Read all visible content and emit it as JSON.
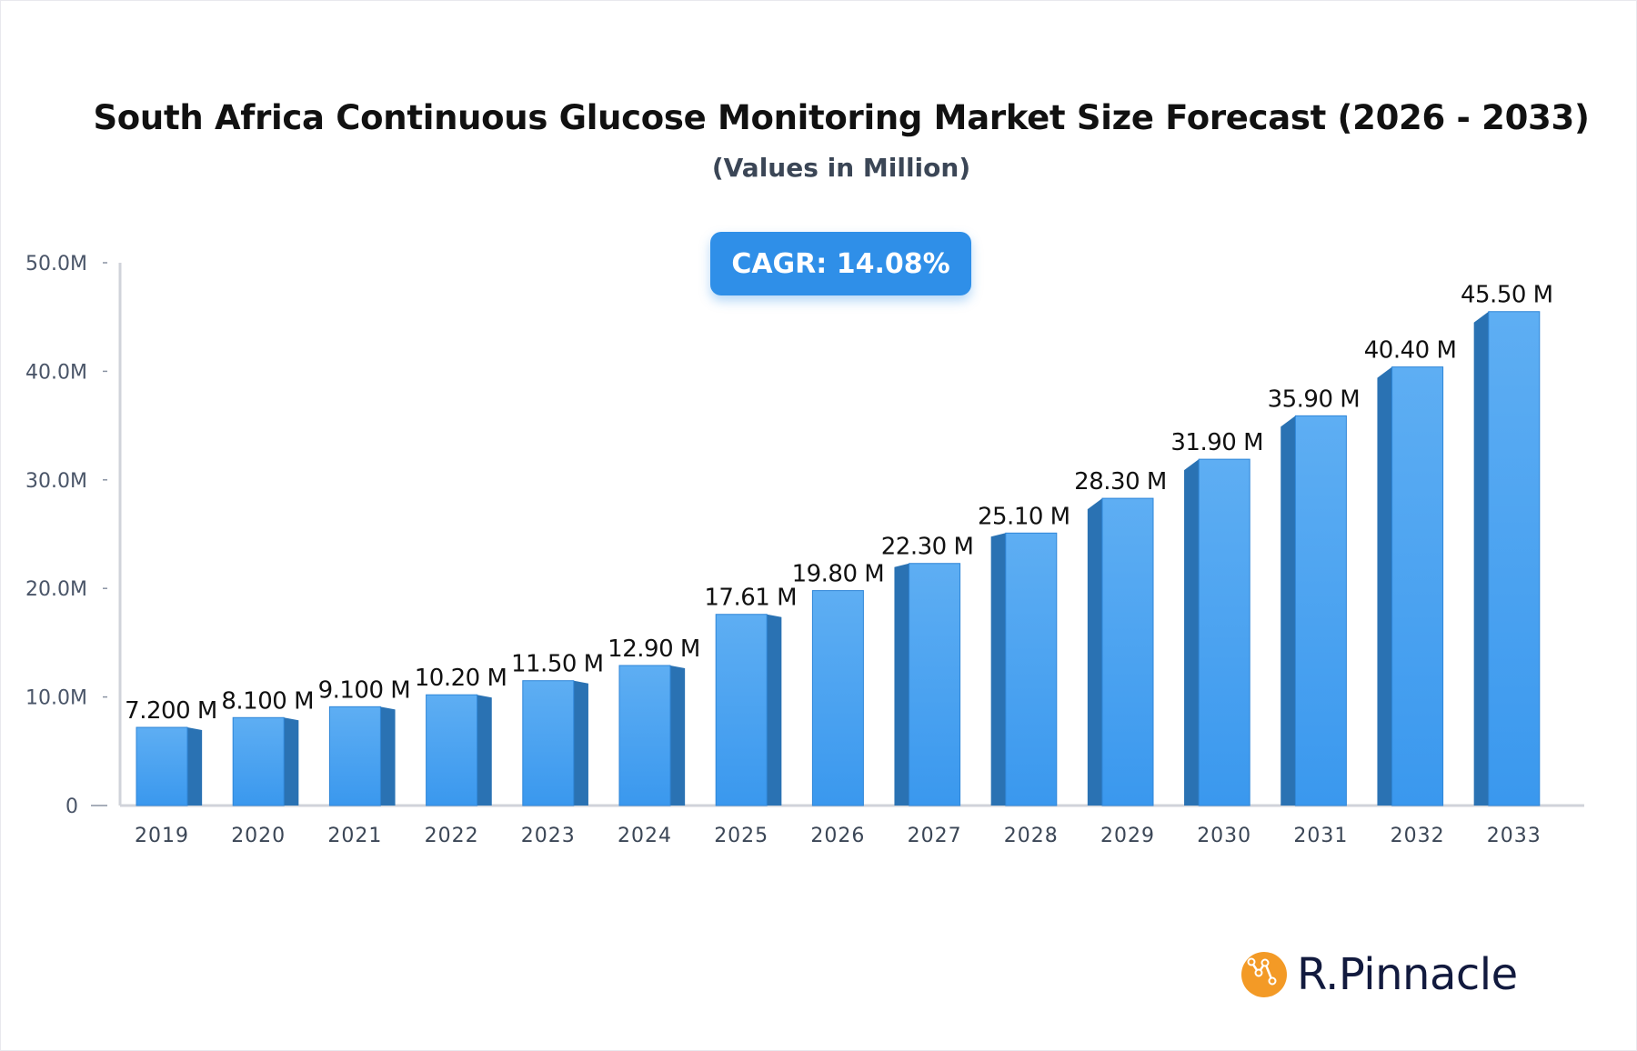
{
  "chart_data": {
    "type": "bar",
    "title": "South Africa Continuous Glucose Monitoring Market Size Forecast (2026 - 2033)",
    "subtitle": "(Values in Million)",
    "categories": [
      "2019",
      "2020",
      "2021",
      "2022",
      "2023",
      "2024",
      "2025",
      "2026",
      "2027",
      "2028",
      "2029",
      "2030",
      "2031",
      "2032",
      "2033"
    ],
    "values": [
      7.2,
      8.1,
      9.1,
      10.2,
      11.5,
      12.9,
      17.61,
      19.8,
      22.3,
      25.1,
      28.3,
      31.9,
      35.9,
      40.4,
      45.5
    ],
    "data_labels": [
      "7.200 M",
      "8.100 M",
      "9.100 M",
      "10.20 M",
      "11.50 M",
      "12.90 M",
      "17.61 M",
      "19.80 M",
      "22.30 M",
      "25.10 M",
      "28.30 M",
      "31.90 M",
      "35.90 M",
      "40.40 M",
      "45.50 M"
    ],
    "ylim": [
      0,
      50
    ],
    "yticks": [
      0,
      10,
      20,
      30,
      40,
      50
    ],
    "ytick_labels": [
      "0",
      "10.0M",
      "20.0M",
      "30.0M",
      "40.0M",
      "50.0M"
    ],
    "xlabel": "",
    "ylabel": "",
    "grid": false,
    "colors": {
      "bar_front_top": "#5eaef3",
      "bar_front_bottom": "#3a98ee",
      "bar_side": "#2a72b3",
      "axis": "#d0d3da"
    }
  },
  "badge": {
    "cagr": "CAGR: 14.08%",
    "color": "#2f8fe8"
  },
  "brand": {
    "name": "R.Pinnacle",
    "icon": "chart-node-icon",
    "icon_color": "#f39a26"
  }
}
